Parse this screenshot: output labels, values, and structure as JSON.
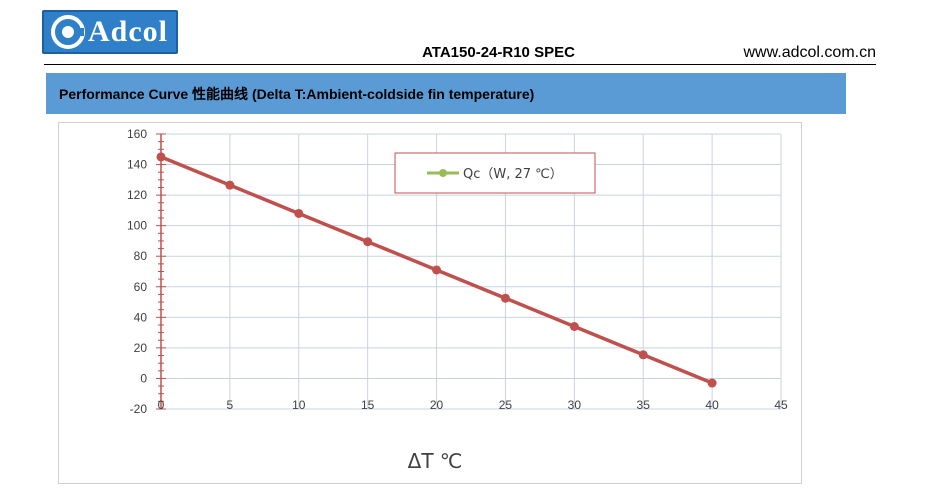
{
  "header": {
    "logo_text": "Adcol",
    "doc_title": "ATA150-24-R10 SPEC",
    "website": "www.adcol.com.cn",
    "brand_color": "#2f80c8"
  },
  "section": {
    "title": "Performance Curve  性能曲线  (Delta T:Ambient-coldside fin temperature)",
    "band_color": "#5b9bd5"
  },
  "chart_data": {
    "type": "line",
    "title": "",
    "xlabel": "ΔT ℃",
    "ylabel": "",
    "xlim": [
      0,
      45
    ],
    "ylim": [
      -20,
      160
    ],
    "xticks": [
      0,
      5,
      10,
      15,
      20,
      25,
      30,
      35,
      40,
      45
    ],
    "yticks": [
      -20,
      0,
      20,
      40,
      60,
      80,
      100,
      120,
      140,
      160
    ],
    "grid": true,
    "legend_position": "top-center",
    "series": [
      {
        "name": "Qc（W, 27 ℃）",
        "line_color": "#c0504d",
        "marker_color": "#9bbb59",
        "x": [
          0,
          5,
          10,
          15,
          20,
          25,
          30,
          35,
          40
        ],
        "y": [
          145,
          126.5,
          108,
          89.5,
          71,
          52.5,
          34,
          15.5,
          -3
        ]
      }
    ]
  }
}
